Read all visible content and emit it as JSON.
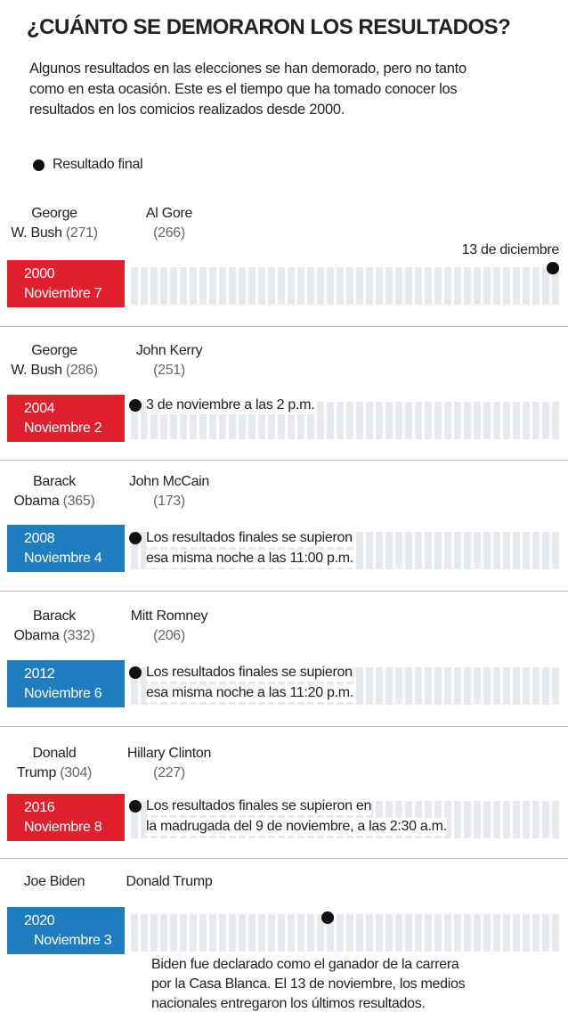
{
  "header": {
    "title": "¿CUÁNTO SE DEMORARON LOS RESULTADOS?",
    "description": [
      "Algunos resultados en las elecciones se han demorado, pero no tanto",
      "como en esta ocasión. Este es el tiempo que ha tomado conocer los",
      "resultados en los comicios realizados desde 2000."
    ]
  },
  "legend": {
    "label": "Resultado final"
  },
  "elections": [
    {
      "winner": {
        "name_lines": [
          "George",
          "W. Bush"
        ],
        "votes": "(271)"
      },
      "loser": {
        "name": "Al Gore",
        "votes": "(266)"
      },
      "year": "2000",
      "date": "Noviembre 7",
      "color": "red",
      "note": [
        "13 de diciembre"
      ]
    },
    {
      "winner": {
        "name_lines": [
          "George",
          "W. Bush"
        ],
        "votes": "(286)"
      },
      "loser": {
        "name": "John Kerry",
        "votes": "(251)"
      },
      "year": "2004",
      "date": "Noviembre 2",
      "color": "red",
      "note": [
        "3 de noviembre a las 2 p.m."
      ]
    },
    {
      "winner": {
        "name_lines": [
          "Barack",
          "Obama"
        ],
        "votes": "(365)"
      },
      "loser": {
        "name": "John McCain",
        "votes": "(173)"
      },
      "year": "2008",
      "date": "Noviembre 4",
      "color": "blue",
      "note": [
        "Los resultados finales se supieron",
        "esa misma noche a las 11:00 p.m."
      ]
    },
    {
      "winner": {
        "name_lines": [
          "Barack",
          "Obama"
        ],
        "votes": "(332)"
      },
      "loser": {
        "name": "Mitt Romney",
        "votes": "(206)"
      },
      "year": "2012",
      "date": "Noviembre 6",
      "color": "blue",
      "note": [
        "Los resultados finales se supieron",
        "esa misma noche a las 11:20 p.m."
      ]
    },
    {
      "winner": {
        "name_lines": [
          "Donald",
          "Trump"
        ],
        "votes": "(304)"
      },
      "loser": {
        "name": "Hillary Clinton",
        "votes": "(227)"
      },
      "year": "2016",
      "date": "Noviembre 8",
      "color": "red",
      "note": [
        "Los resultados finales se supieron en",
        "la madrugada del 9 de noviembre, a las 2:30 a.m."
      ]
    },
    {
      "winner": {
        "name_lines": [
          "Joe Biden"
        ]
      },
      "loser": {
        "name": "Donald Trump"
      },
      "year": "2020",
      "date": "Noviembre 3",
      "color": "blue",
      "note": [
        "Biden fue declarado como el ganador de la carrera",
        "por la Casa Blanca. El 13 de noviembre, los medios",
        "nacionales entregaron los últimos resultados."
      ]
    }
  ]
}
